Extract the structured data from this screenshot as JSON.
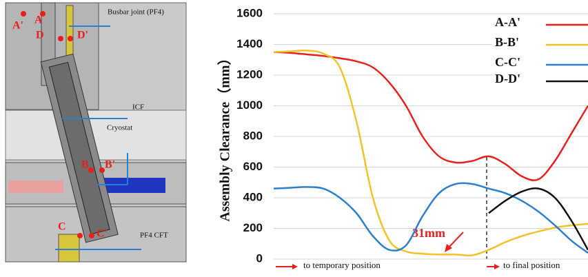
{
  "schematic": {
    "labels": [
      "Busbar joint (PF4)",
      "ICF",
      "Cryostat",
      "PF4 CFT"
    ],
    "points": [
      "A'",
      "A",
      "D",
      "D'",
      "B",
      "B'",
      "C",
      "C'"
    ]
  },
  "chart_data": {
    "type": "line",
    "y_label": "Assembly Clearance（mm）",
    "categories": [
      null,
      null,
      null,
      null,
      null,
      null,
      null,
      null,
      null,
      null,
      null,
      null,
      null,
      null,
      null,
      null,
      null,
      null,
      null,
      null
    ],
    "series": [
      {
        "name": "A-A'",
        "color": "#e8201c",
        "values": [
          1350,
          1345,
          1335,
          1325,
          1310,
          1290,
          1250,
          1150,
          1000,
          800,
          670,
          630,
          640,
          670,
          620,
          540,
          520,
          640,
          820,
          1000
        ]
      },
      {
        "name": "B-B'",
        "color": "#f5c02a",
        "values": [
          1350,
          1355,
          1360,
          1340,
          1250,
          900,
          400,
          120,
          50,
          35,
          30,
          30,
          25,
          60,
          110,
          150,
          180,
          205,
          220,
          230
        ]
      },
      {
        "name": "C-C'",
        "color": "#2a7fd0",
        "values": [
          460,
          465,
          470,
          460,
          400,
          300,
          150,
          60,
          90,
          280,
          430,
          490,
          490,
          460,
          430,
          380,
          310,
          220,
          120,
          40
        ]
      },
      {
        "name": "D-D'",
        "color": "#111111",
        "values": [
          null,
          null,
          null,
          null,
          null,
          null,
          null,
          null,
          null,
          null,
          null,
          null,
          null,
          300,
          380,
          440,
          460,
          400,
          250,
          60
        ]
      }
    ],
    "ylim": [
      0,
      1600
    ],
    "yticks": [
      0,
      200,
      400,
      600,
      800,
      1000,
      1200,
      1400,
      1600
    ],
    "grid": true,
    "legend": "top-right",
    "annotations": [
      "31mm",
      "to temporary position",
      "to final position"
    ]
  }
}
